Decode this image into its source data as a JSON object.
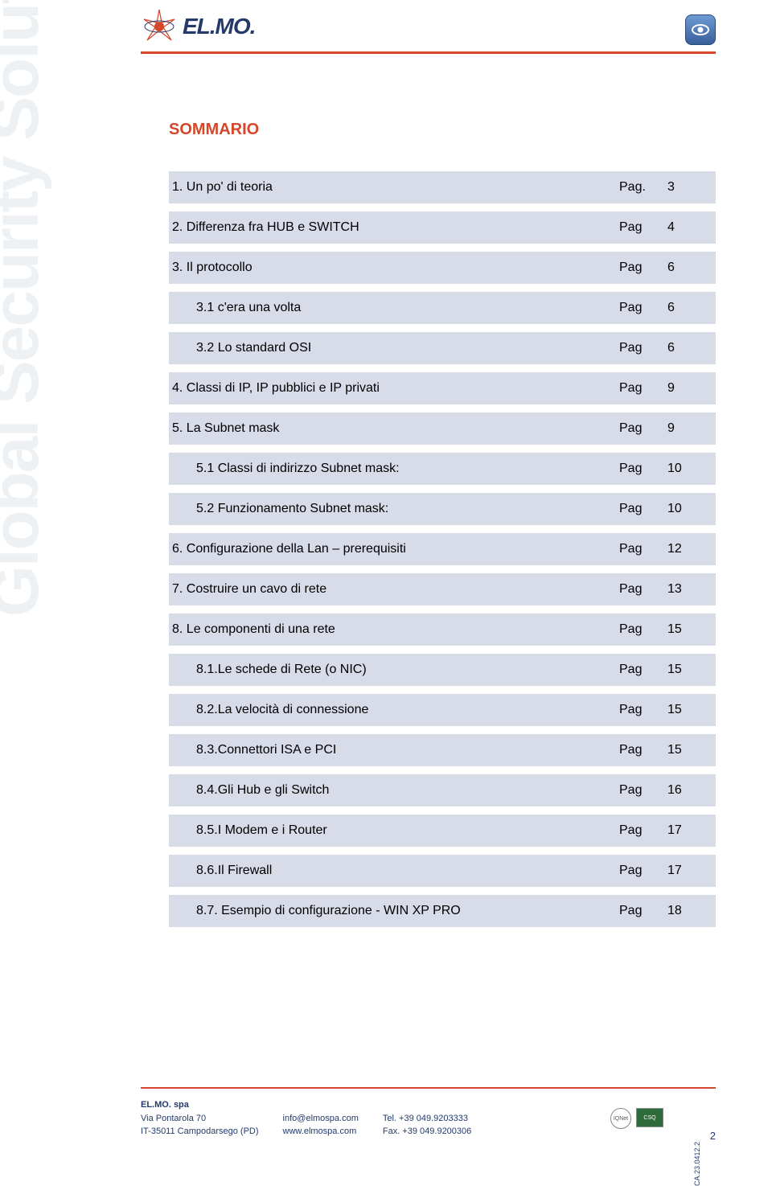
{
  "brand": {
    "logo_text": "EL.MO.",
    "side_text": "Global Security Solutions"
  },
  "colors": {
    "accent": "#d4472b",
    "shade": "#d8dbe8",
    "brand_blue": "#233a6a"
  },
  "toc": {
    "title": "SOMMARIO",
    "page_word": "Pag",
    "page_word_first": "Pag.",
    "rows": [
      {
        "label": "1. Un po' di teoria",
        "indent": 0,
        "page": "3",
        "pw": "Pag."
      },
      {
        "label": "2. Differenza fra HUB e SWITCH",
        "indent": 0,
        "page": "4",
        "pw": "Pag"
      },
      {
        "label": "3. Il protocollo",
        "indent": 0,
        "page": "6",
        "pw": "Pag"
      },
      {
        "label": "3.1 c'era una volta",
        "indent": 1,
        "page": "6",
        "pw": "Pag"
      },
      {
        "label": "3.2 Lo standard OSI",
        "indent": 1,
        "page": "6",
        "pw": "Pag"
      },
      {
        "label": "4. Classi di IP, IP pubblici e IP privati",
        "indent": 0,
        "page": "9",
        "pw": "Pag"
      },
      {
        "label": "5. La Subnet mask",
        "indent": 0,
        "page": "9",
        "pw": "Pag"
      },
      {
        "label": "5.1 Classi di indirizzo Subnet mask:",
        "indent": 1,
        "page": "10",
        "pw": "Pag"
      },
      {
        "label": "5.2 Funzionamento Subnet mask:",
        "indent": 1,
        "page": "10",
        "pw": "Pag"
      },
      {
        "label": "6. Configurazione della Lan – prerequisiti",
        "indent": 0,
        "page": "12",
        "pw": "Pag"
      },
      {
        "label": "7. Costruire un cavo di rete",
        "indent": 0,
        "page": "13",
        "pw": "Pag"
      },
      {
        "label": "8. Le componenti di una rete",
        "indent": 0,
        "page": "15",
        "pw": "Pag"
      },
      {
        "label": "8.1.Le schede di Rete (o NIC)",
        "indent": 1,
        "page": "15",
        "pw": "Pag"
      },
      {
        "label": "8.2.La velocità di connessione",
        "indent": 1,
        "page": "15",
        "pw": "Pag"
      },
      {
        "label": "8.3.Connettori ISA e PCI",
        "indent": 1,
        "page": "15",
        "pw": "Pag"
      },
      {
        "label": "8.4.Gli Hub e gli Switch",
        "indent": 1,
        "page": "16",
        "pw": "Pag"
      },
      {
        "label": "8.5.I Modem e i Router",
        "indent": 1,
        "page": "17",
        "pw": "Pag"
      },
      {
        "label": "8.6.Il Firewall",
        "indent": 1,
        "page": "17",
        "pw": "Pag"
      },
      {
        "label": "8.7. Esempio di configurazione - WIN XP PRO",
        "indent": 1,
        "page": "18",
        "pw": "Pag"
      }
    ]
  },
  "footer": {
    "company": "EL.MO. spa",
    "addr1": "Via Pontarola 70",
    "addr2": "IT-35011 Campodarsego (PD)",
    "email": "info@elmospa.com",
    "web": "www.elmospa.com",
    "tel": "Tel. +39 049.9203333",
    "fax": "Fax. +39 049.9200306",
    "doc_code": "CA.23.0412.2",
    "page_number": "2",
    "badge1": "IQNet",
    "badge2": "CSQ"
  }
}
